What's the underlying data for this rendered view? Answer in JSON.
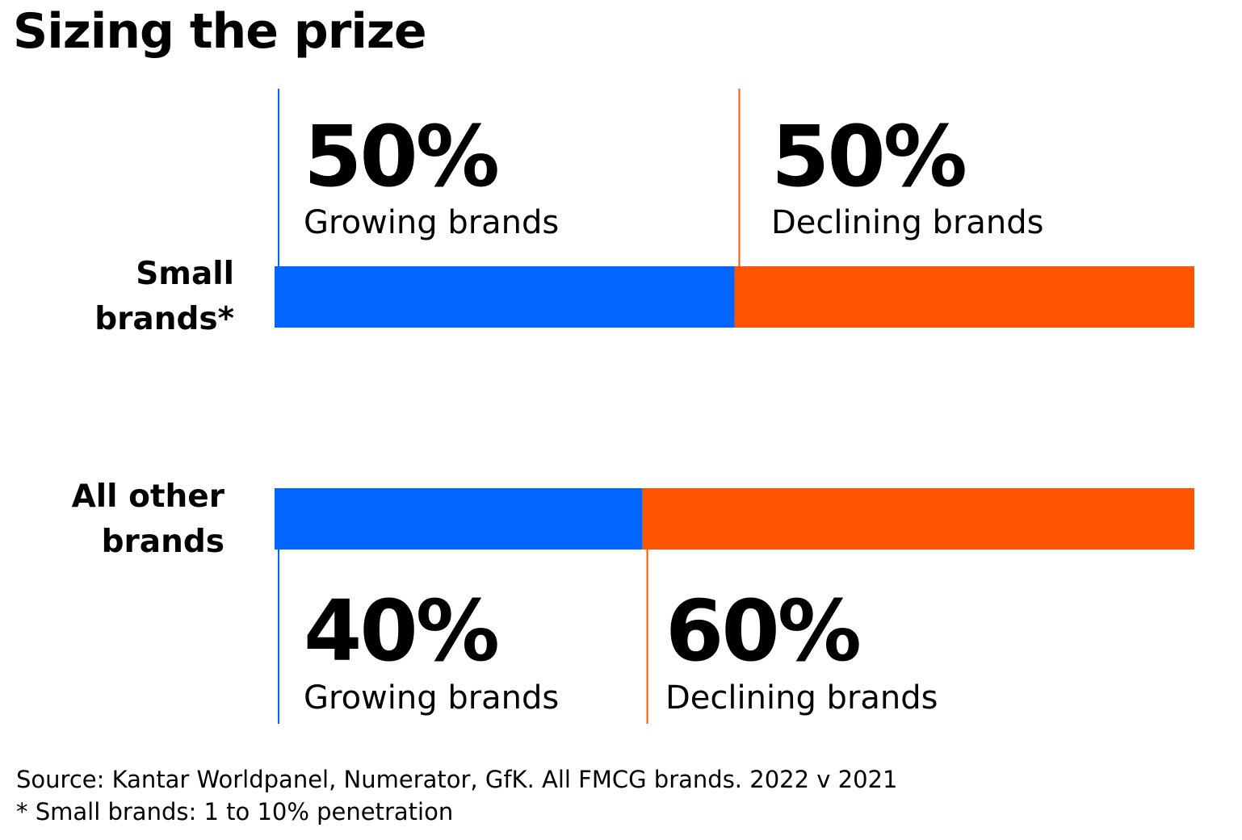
{
  "title": "Sizing the prize",
  "chart_data": {
    "type": "bar",
    "stacked": true,
    "orientation": "horizontal",
    "categories": [
      "Small brands*",
      "All other brands"
    ],
    "series": [
      {
        "name": "Growing brands",
        "values": [
          50,
          40
        ],
        "color": "#0066ff"
      },
      {
        "name": "Declining brands",
        "values": [
          50,
          60
        ],
        "color": "#ff5500"
      }
    ],
    "xlim": [
      0,
      100
    ],
    "grid": false
  },
  "labels": {
    "small_line1": "Small",
    "small_line2": "brands*",
    "other_line1": "All other",
    "other_line2": "brands",
    "small_growing_pct": "50%",
    "small_growing_label": "Growing brands",
    "small_declining_pct": "50%",
    "small_declining_label": "Declining brands",
    "other_growing_pct": "40%",
    "other_growing_label": "Growing brands",
    "other_declining_pct": "60%",
    "other_declining_label": "Declining brands"
  },
  "footer": {
    "source": "Source: Kantar Worldpanel, Numerator, GfK. All FMCG brands. 2022 v 2021",
    "footnote": "* Small brands: 1 to 10% penetration"
  }
}
